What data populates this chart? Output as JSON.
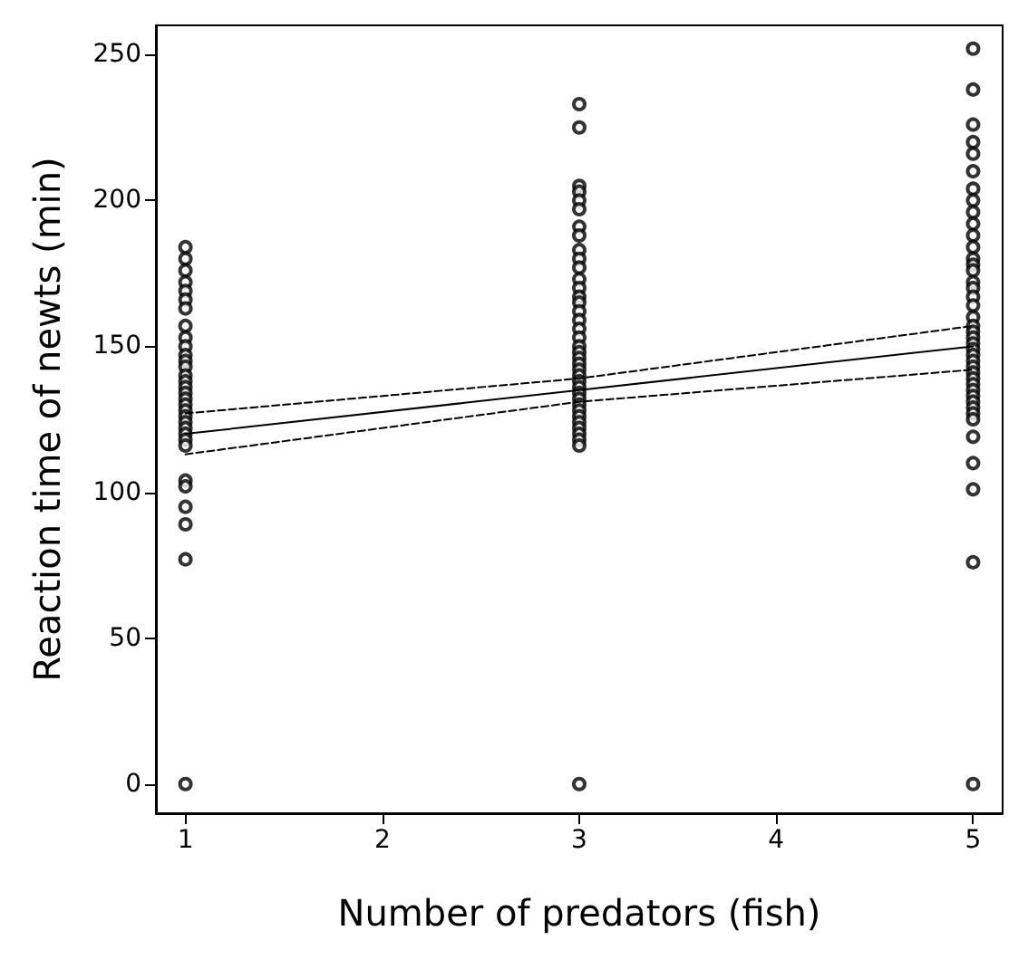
{
  "chart_data": {
    "type": "scatter",
    "xlabel": "Number of predators (fish)",
    "ylabel": "Reaction time of newts (min)",
    "xlim": [
      0.85,
      5.15
    ],
    "xticks": [
      1,
      2,
      3,
      4,
      5
    ],
    "ylim": [
      -10,
      260
    ],
    "yticks": [
      0,
      50,
      100,
      150,
      200,
      250
    ],
    "grid": false,
    "series": [
      {
        "type": "scatter",
        "color": "#000000",
        "marker": "circle",
        "x": [
          1,
          1,
          1,
          1,
          1,
          1,
          1,
          1,
          1,
          1,
          1,
          1,
          1,
          1,
          1,
          1,
          1,
          1,
          1,
          1,
          1,
          1,
          1,
          1,
          1,
          1,
          1,
          1,
          1,
          1,
          1,
          1,
          3,
          3,
          3,
          3,
          3,
          3,
          3,
          3,
          3,
          3,
          3,
          3,
          3,
          3,
          3,
          3,
          3,
          3,
          3,
          3,
          3,
          3,
          3,
          3,
          3,
          3,
          3,
          3,
          3,
          3,
          3,
          3,
          3,
          3,
          3,
          3,
          3,
          3,
          5,
          5,
          5,
          5,
          5,
          5,
          5,
          5,
          5,
          5,
          5,
          5,
          5,
          5,
          5,
          5,
          5,
          5,
          5,
          5,
          5,
          5,
          5,
          5,
          5,
          5,
          5,
          5,
          5,
          5,
          5,
          5,
          5,
          5,
          5,
          5,
          5,
          5,
          5,
          5,
          5,
          5
        ],
        "values": [
          184,
          180,
          176,
          172,
          169,
          166,
          163,
          157,
          153,
          150,
          147,
          145,
          143,
          140,
          138,
          136,
          134,
          132,
          130,
          128,
          126,
          124,
          122,
          120,
          118,
          116,
          104,
          102,
          95,
          89,
          77,
          0,
          233,
          225,
          205,
          203,
          200,
          197,
          191,
          188,
          183,
          180,
          177,
          173,
          170,
          167,
          165,
          162,
          159,
          156,
          153,
          150,
          148,
          146,
          144,
          142,
          140,
          138,
          136,
          134,
          132,
          130,
          128,
          126,
          124,
          122,
          120,
          118,
          116,
          0,
          252,
          238,
          226,
          220,
          216,
          210,
          204,
          200,
          196,
          192,
          188,
          184,
          180,
          178,
          176,
          172,
          170,
          167,
          164,
          160,
          157,
          155,
          153,
          151,
          149,
          147,
          145,
          143,
          141,
          139,
          137,
          135,
          133,
          131,
          129,
          127,
          125,
          119,
          110,
          101,
          76,
          0
        ]
      },
      {
        "type": "line",
        "color": "#000000",
        "marker": "none",
        "line_style": "solid",
        "x": [
          1,
          3,
          5
        ],
        "values": [
          120,
          135,
          150
        ]
      },
      {
        "type": "line",
        "color": "#000000",
        "marker": "none",
        "line_style": "dashed",
        "x": [
          1,
          3,
          5
        ],
        "values": [
          113,
          131,
          142
        ]
      },
      {
        "type": "line",
        "color": "#000000",
        "marker": "none",
        "line_style": "dashed",
        "x": [
          1,
          3,
          5
        ],
        "values": [
          127,
          139,
          157
        ]
      }
    ]
  }
}
